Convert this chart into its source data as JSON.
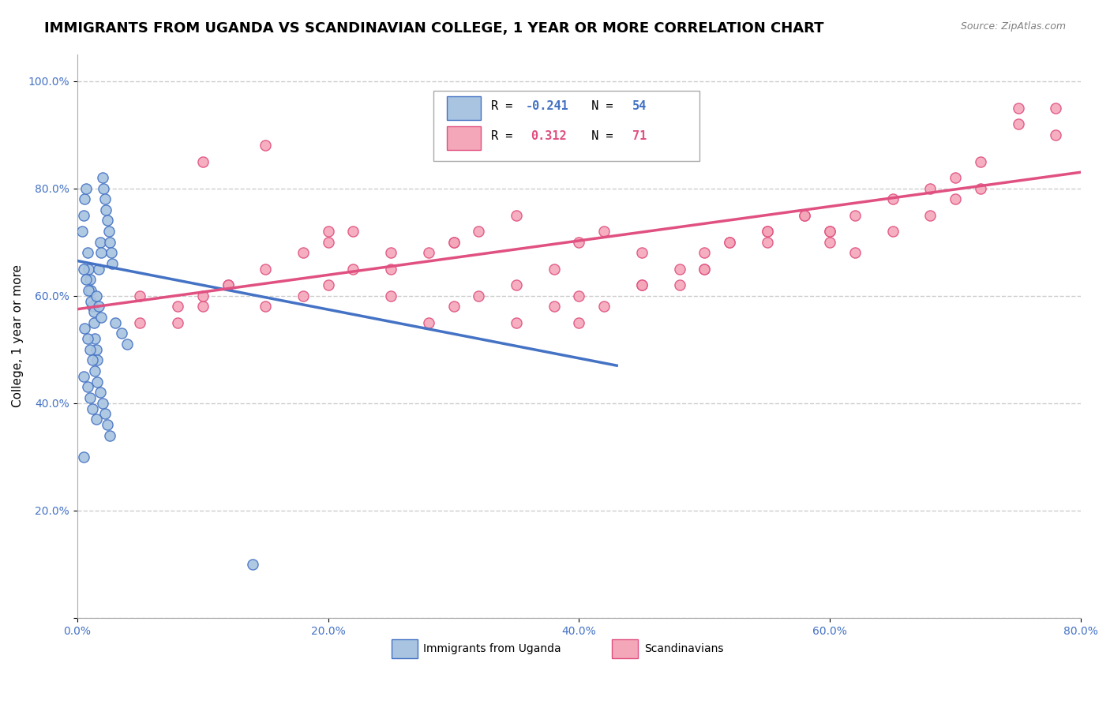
{
  "title": "IMMIGRANTS FROM UGANDA VS SCANDINAVIAN COLLEGE, 1 YEAR OR MORE CORRELATION CHART",
  "source": "Source: ZipAtlas.com",
  "ylabel": "College, 1 year or more",
  "xlim": [
    0.0,
    0.8
  ],
  "ylim": [
    0.0,
    1.05
  ],
  "xticks": [
    0.0,
    0.2,
    0.4,
    0.6,
    0.8
  ],
  "yticks": [
    0.0,
    0.2,
    0.4,
    0.6,
    0.8,
    1.0
  ],
  "xtick_labels": [
    "0.0%",
    "20.0%",
    "40.0%",
    "60.0%",
    "80.0%"
  ],
  "ytick_labels": [
    "",
    "20.0%",
    "40.0%",
    "60.0%",
    "80.0%",
    "100.0%"
  ],
  "blue_R": -0.241,
  "blue_N": 54,
  "pink_R": 0.312,
  "pink_N": 71,
  "blue_color": "#a8c4e0",
  "blue_edge_color": "#4472c4",
  "pink_color": "#f4a7b9",
  "pink_edge_color": "#e05080",
  "legend_label_blue": "Immigrants from Uganda",
  "legend_label_pink": "Scandinavians",
  "blue_scatter_x": [
    0.004,
    0.005,
    0.006,
    0.007,
    0.008,
    0.009,
    0.01,
    0.011,
    0.012,
    0.013,
    0.014,
    0.015,
    0.016,
    0.017,
    0.018,
    0.019,
    0.02,
    0.021,
    0.022,
    0.023,
    0.024,
    0.025,
    0.026,
    0.027,
    0.028,
    0.005,
    0.007,
    0.009,
    0.011,
    0.013,
    0.015,
    0.017,
    0.019,
    0.006,
    0.008,
    0.01,
    0.012,
    0.014,
    0.016,
    0.018,
    0.02,
    0.022,
    0.024,
    0.026,
    0.005,
    0.008,
    0.01,
    0.012,
    0.015,
    0.03,
    0.035,
    0.04,
    0.005,
    0.14
  ],
  "blue_scatter_y": [
    0.72,
    0.75,
    0.78,
    0.8,
    0.68,
    0.65,
    0.63,
    0.61,
    0.58,
    0.55,
    0.52,
    0.5,
    0.48,
    0.65,
    0.7,
    0.68,
    0.82,
    0.8,
    0.78,
    0.76,
    0.74,
    0.72,
    0.7,
    0.68,
    0.66,
    0.65,
    0.63,
    0.61,
    0.59,
    0.57,
    0.6,
    0.58,
    0.56,
    0.54,
    0.52,
    0.5,
    0.48,
    0.46,
    0.44,
    0.42,
    0.4,
    0.38,
    0.36,
    0.34,
    0.45,
    0.43,
    0.41,
    0.39,
    0.37,
    0.55,
    0.53,
    0.51,
    0.3,
    0.1
  ],
  "pink_scatter_x": [
    0.05,
    0.08,
    0.1,
    0.12,
    0.15,
    0.18,
    0.2,
    0.22,
    0.25,
    0.28,
    0.3,
    0.32,
    0.35,
    0.38,
    0.4,
    0.42,
    0.45,
    0.48,
    0.5,
    0.52,
    0.55,
    0.58,
    0.6,
    0.62,
    0.65,
    0.68,
    0.7,
    0.72,
    0.05,
    0.08,
    0.1,
    0.12,
    0.15,
    0.18,
    0.2,
    0.22,
    0.25,
    0.28,
    0.3,
    0.32,
    0.35,
    0.38,
    0.4,
    0.42,
    0.45,
    0.48,
    0.5,
    0.52,
    0.55,
    0.58,
    0.6,
    0.62,
    0.65,
    0.68,
    0.7,
    0.72,
    0.75,
    0.75,
    0.78,
    0.78,
    0.1,
    0.15,
    0.2,
    0.25,
    0.3,
    0.35,
    0.4,
    0.45,
    0.5,
    0.55,
    0.6
  ],
  "pink_scatter_y": [
    0.6,
    0.55,
    0.58,
    0.62,
    0.65,
    0.68,
    0.7,
    0.72,
    0.65,
    0.68,
    0.7,
    0.72,
    0.75,
    0.65,
    0.7,
    0.72,
    0.68,
    0.62,
    0.65,
    0.7,
    0.72,
    0.75,
    0.7,
    0.68,
    0.72,
    0.75,
    0.78,
    0.8,
    0.55,
    0.58,
    0.6,
    0.62,
    0.58,
    0.6,
    0.62,
    0.65,
    0.6,
    0.55,
    0.58,
    0.6,
    0.62,
    0.58,
    0.55,
    0.58,
    0.62,
    0.65,
    0.68,
    0.7,
    0.72,
    0.75,
    0.72,
    0.75,
    0.78,
    0.8,
    0.82,
    0.85,
    0.92,
    0.95,
    0.9,
    0.95,
    0.85,
    0.88,
    0.72,
    0.68,
    0.7,
    0.55,
    0.6,
    0.62,
    0.65,
    0.7,
    0.72
  ],
  "blue_line_x": [
    0.0,
    0.43
  ],
  "blue_line_y": [
    0.665,
    0.47
  ],
  "pink_line_x": [
    0.0,
    0.8
  ],
  "pink_line_y": [
    0.575,
    0.83
  ],
  "bg_color": "#ffffff",
  "grid_color": "#cccccc",
  "title_fontsize": 13,
  "label_fontsize": 11,
  "tick_fontsize": 10,
  "tick_color": "#4472c4"
}
